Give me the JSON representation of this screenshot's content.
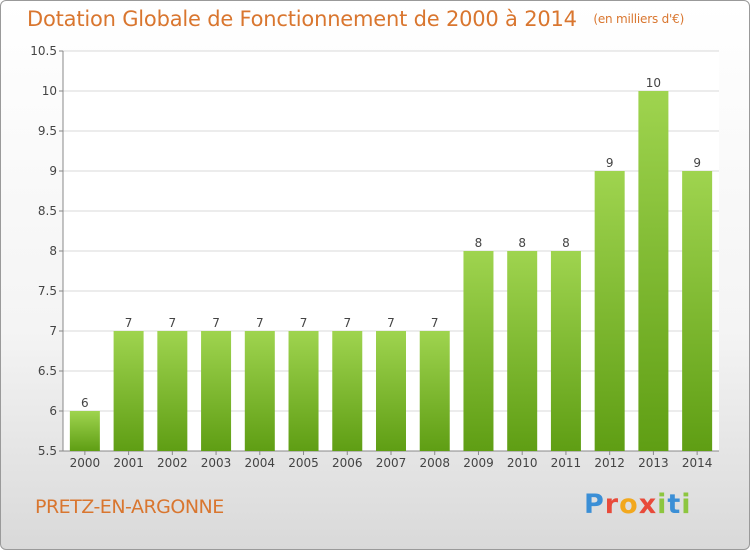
{
  "header": {
    "title": "Dotation Globale de Fonctionnement de 2000 à 2014",
    "subtitle": "(en milliers d'€)"
  },
  "commune": "PRETZ-EN-ARGONNE",
  "logo": {
    "text": "Proxiti",
    "letters": [
      "P",
      "r",
      "o",
      "x",
      "i",
      "t",
      "i"
    ]
  },
  "colors": {
    "accent": "#d9762f",
    "bar_top": "#9fd44f",
    "bar_bottom": "#5f9e14",
    "grid": "#d8d8d8"
  },
  "chart_data": {
    "type": "bar",
    "categories": [
      "2000",
      "2001",
      "2002",
      "2003",
      "2004",
      "2005",
      "2006",
      "2007",
      "2008",
      "2009",
      "2010",
      "2011",
      "2012",
      "2013",
      "2014"
    ],
    "values": [
      6,
      7,
      7,
      7,
      7,
      7,
      7,
      7,
      7,
      8,
      8,
      8,
      9,
      10,
      9
    ],
    "value_labels": [
      "6",
      "7",
      "7",
      "7",
      "7",
      "7",
      "7",
      "7",
      "7",
      "8",
      "8",
      "8",
      "9",
      "10",
      "9"
    ],
    "title": "Dotation Globale de Fonctionnement de 2000 à 2014",
    "ylim": [
      5.5,
      10.5
    ],
    "yticks": [
      "5.5",
      "6",
      "6.5",
      "7",
      "7.5",
      "8",
      "8.5",
      "9",
      "9.5",
      "10",
      "10.5"
    ],
    "grid": true,
    "legend": "none"
  }
}
